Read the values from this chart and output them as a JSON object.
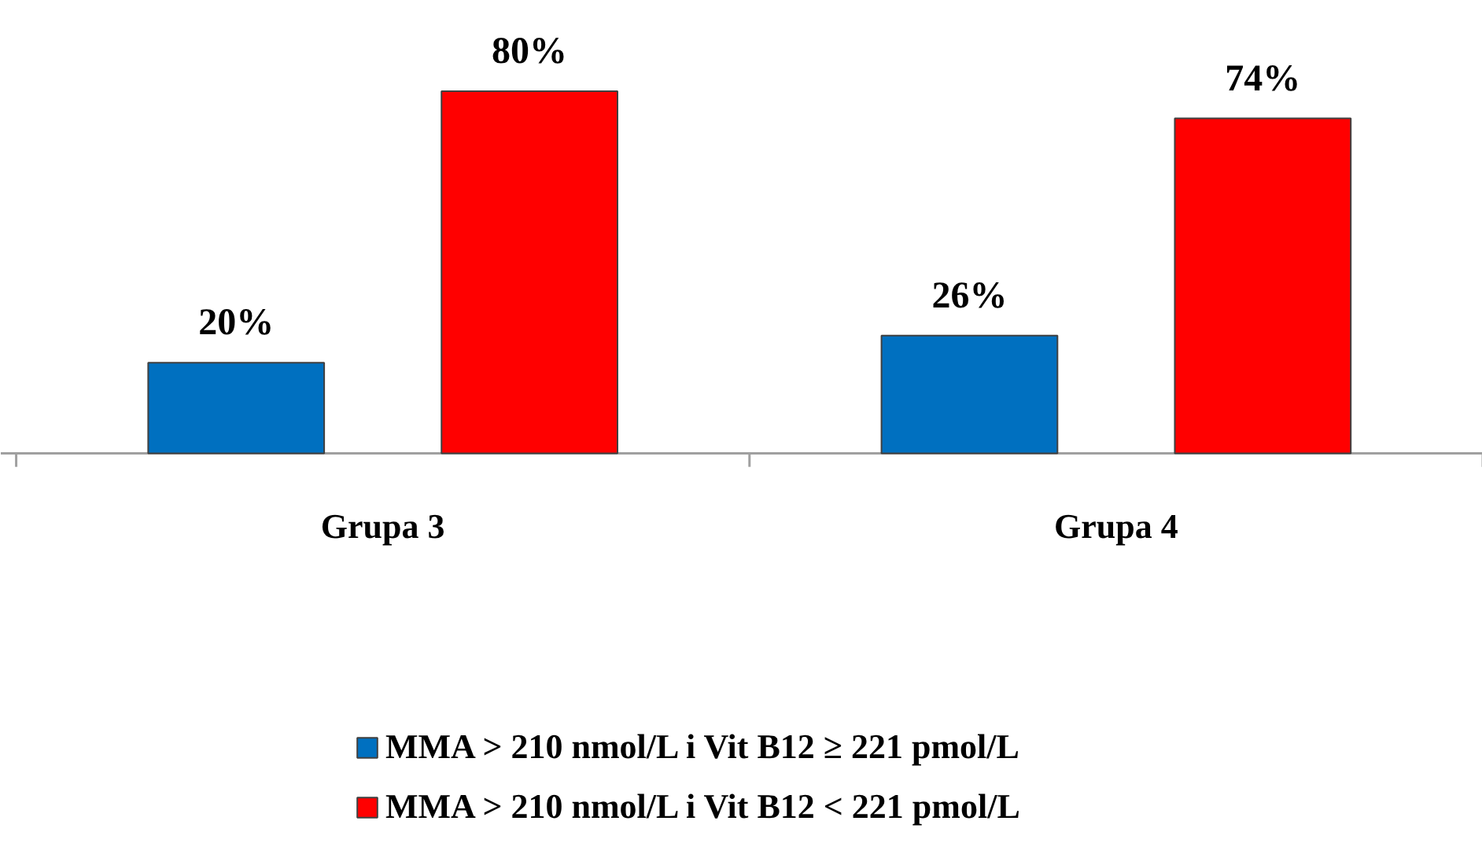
{
  "chart_data": {
    "type": "bar",
    "categories": [
      "Grupa 3",
      "Grupa 4"
    ],
    "series": [
      {
        "name": "MMA > 210 nmol/L i Vit B12 ≥ 221 pmol/L",
        "color": "#0070c0",
        "values": [
          20,
          26
        ],
        "value_labels": [
          "20%",
          "26%"
        ]
      },
      {
        "name": "MMA > 210 nmol/L i Vit B12 < 221 pmol/L",
        "color": "#ff0000",
        "values": [
          80,
          74
        ],
        "value_labels": [
          "80%",
          "74%"
        ]
      }
    ],
    "legend": "bottom",
    "grid": false,
    "tick_labels": "x"
  }
}
